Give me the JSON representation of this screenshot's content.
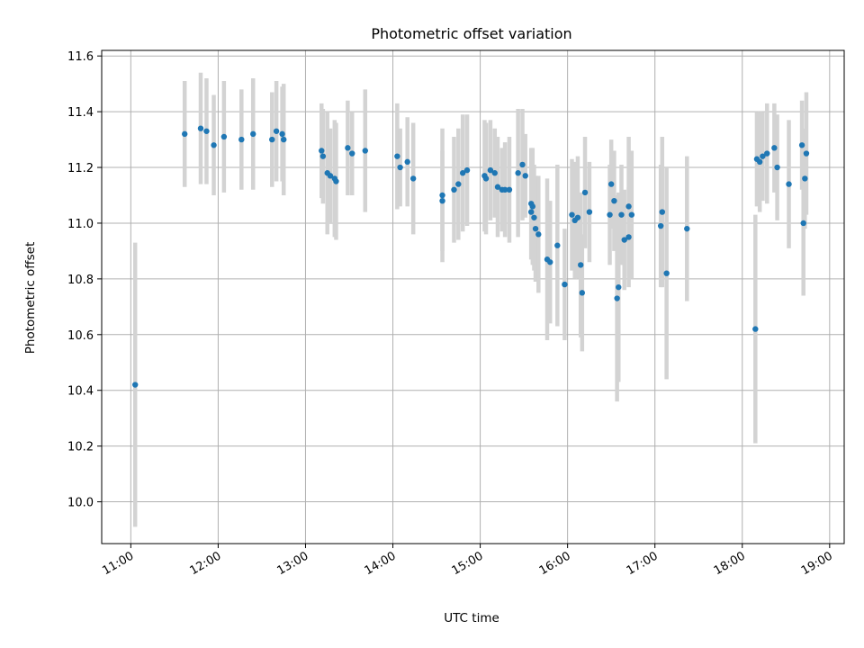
{
  "chart_data": {
    "type": "scatter",
    "title": "Photometric offset variation",
    "xlabel": "UTC time",
    "ylabel": "Photometric offset",
    "x_ticks": [
      "11:00",
      "12:00",
      "13:00",
      "14:00",
      "15:00",
      "16:00",
      "17:00",
      "18:00",
      "19:00"
    ],
    "y_ticks": [
      "10.0",
      "10.2",
      "10.4",
      "10.6",
      "10.8",
      "11.0",
      "11.2",
      "11.4",
      "11.6"
    ],
    "xlim": [
      "10:40",
      "19:10"
    ],
    "ylim": [
      9.85,
      11.62
    ],
    "grid": true,
    "colors": {
      "points": "#1f77b4",
      "errorbars": "#d3d3d3",
      "grid": "#b0b0b0"
    },
    "x": [
      "11:03",
      "11:37",
      "11:48",
      "11:52",
      "11:57",
      "12:04",
      "12:16",
      "12:24",
      "12:37",
      "12:40",
      "12:44",
      "12:45",
      "13:11",
      "13:12",
      "13:15",
      "13:17",
      "13:20",
      "13:21",
      "13:29",
      "13:32",
      "13:41",
      "14:03",
      "14:05",
      "14:10",
      "14:14",
      "14:34",
      "14:34",
      "14:42",
      "14:45",
      "14:48",
      "14:51",
      "15:03",
      "15:04",
      "15:07",
      "15:10",
      "15:12",
      "15:15",
      "15:17",
      "15:20",
      "15:26",
      "15:29",
      "15:31",
      "15:35",
      "15:35",
      "15:36",
      "15:37",
      "15:38",
      "15:40",
      "15:46",
      "15:48",
      "15:53",
      "15:58",
      "16:03",
      "16:05",
      "16:07",
      "16:09",
      "16:10",
      "16:12",
      "16:15",
      "16:29",
      "16:30",
      "16:32",
      "16:34",
      "16:35",
      "16:37",
      "16:39",
      "16:42",
      "16:42",
      "16:44",
      "17:04",
      "17:05",
      "17:08",
      "17:22",
      "18:09",
      "18:10",
      "18:12",
      "18:14",
      "18:17",
      "18:22",
      "18:24",
      "18:32",
      "18:41",
      "18:42",
      "18:43",
      "18:44"
    ],
    "values": [
      10.42,
      11.32,
      11.34,
      11.33,
      11.28,
      11.31,
      11.3,
      11.32,
      11.3,
      11.33,
      11.32,
      11.3,
      11.26,
      11.24,
      11.18,
      11.17,
      11.16,
      11.15,
      11.27,
      11.25,
      11.26,
      11.24,
      11.2,
      11.22,
      11.16,
      11.1,
      11.08,
      11.12,
      11.14,
      11.18,
      11.19,
      11.17,
      11.16,
      11.19,
      11.18,
      11.13,
      11.12,
      11.12,
      11.12,
      11.18,
      11.21,
      11.17,
      11.07,
      11.04,
      11.06,
      11.02,
      10.98,
      10.96,
      10.87,
      10.86,
      10.92,
      10.78,
      11.03,
      11.01,
      11.02,
      10.85,
      10.75,
      11.11,
      11.04,
      11.03,
      11.14,
      11.08,
      10.73,
      10.77,
      11.03,
      10.94,
      10.95,
      11.06,
      11.03,
      10.99,
      11.04,
      10.82,
      10.98,
      10.62,
      11.23,
      11.22,
      11.24,
      11.25,
      11.27,
      11.2,
      11.14,
      11.28,
      11.0,
      11.16,
      11.25
    ],
    "errors": [
      0.51,
      0.19,
      0.2,
      0.19,
      0.18,
      0.2,
      0.18,
      0.2,
      0.17,
      0.18,
      0.17,
      0.2,
      0.17,
      0.17,
      0.22,
      0.17,
      0.21,
      0.21,
      0.17,
      0.15,
      0.22,
      0.19,
      0.14,
      0.16,
      0.2,
      0.24,
      0.18,
      0.19,
      0.2,
      0.21,
      0.2,
      0.2,
      0.2,
      0.18,
      0.16,
      0.18,
      0.15,
      0.17,
      0.19,
      0.23,
      0.2,
      0.15,
      0.2,
      0.17,
      0.21,
      0.19,
      0.19,
      0.21,
      0.29,
      0.22,
      0.29,
      0.2,
      0.2,
      0.21,
      0.22,
      0.26,
      0.21,
      0.2,
      0.18,
      0.18,
      0.16,
      0.18,
      0.37,
      0.34,
      0.18,
      0.18,
      0.18,
      0.25,
      0.23,
      0.22,
      0.27,
      0.38,
      0.26,
      0.41,
      0.17,
      0.18,
      0.16,
      0.18,
      0.16,
      0.19,
      0.23,
      0.16,
      0.26,
      0.18,
      0.22
    ]
  }
}
